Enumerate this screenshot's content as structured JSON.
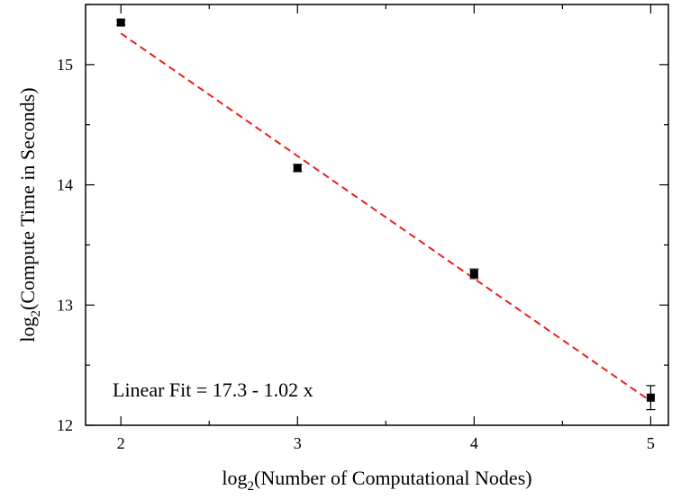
{
  "chart_data": {
    "type": "scatter",
    "xlabel": {
      "prefix": "log",
      "sub": "2",
      "text": "(Number of Computational Nodes)"
    },
    "ylabel": {
      "prefix": "log",
      "sub": "2",
      "text": "(Compute Time in Seconds)"
    },
    "xlim": [
      1.8,
      5.1
    ],
    "ylim": [
      12.0,
      15.5
    ],
    "xticks": [
      2,
      3,
      4,
      5
    ],
    "yticks": [
      12,
      13,
      14,
      15
    ],
    "x_minor_step": 0.5,
    "y_minor_step": 0.5,
    "series": [
      {
        "x": [
          2,
          3,
          4,
          5
        ],
        "y": [
          15.35,
          14.14,
          13.26,
          12.23
        ],
        "yerr": [
          0.02,
          0.03,
          0.04,
          0.1
        ],
        "marker": "square",
        "color": "#000000"
      }
    ],
    "fit": {
      "intercept": 17.3,
      "slope": -1.02,
      "x_range": [
        2,
        5
      ],
      "style": "dashed",
      "color": "#e8201c"
    },
    "annotation": "Linear Fit = 17.3 - 1.02 x",
    "grid": false
  }
}
